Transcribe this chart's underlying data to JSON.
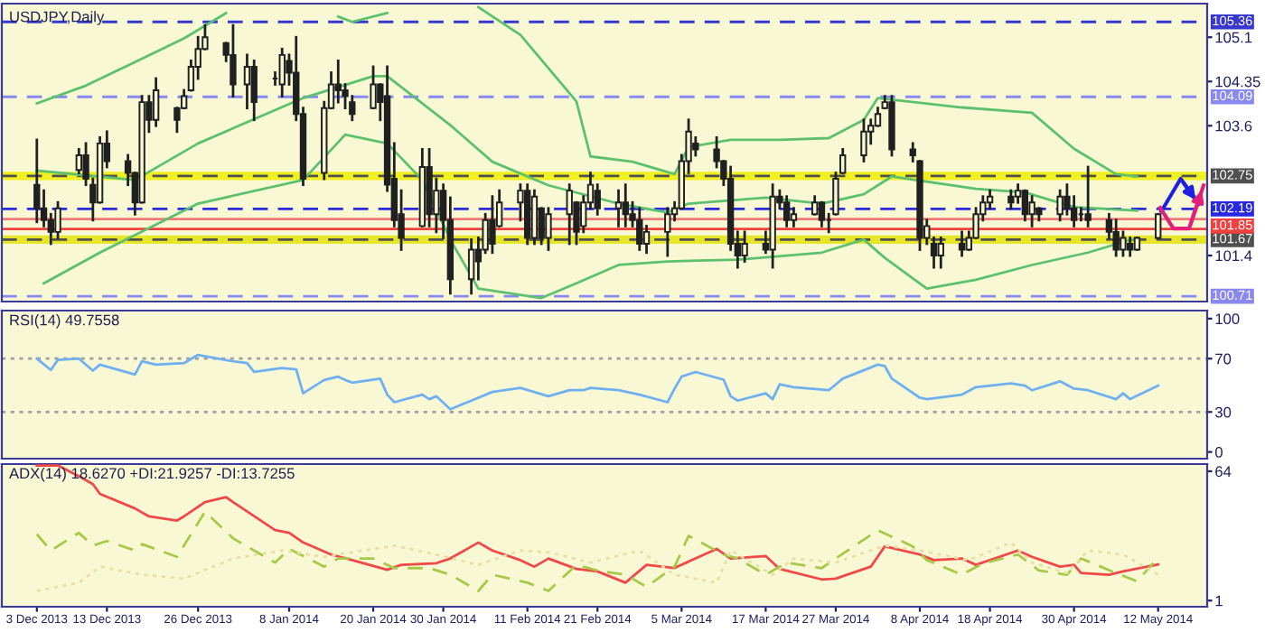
{
  "chart_data": [
    {
      "type": "candlestick",
      "title": "USDJPY,Daily",
      "color": "#202020",
      "x": [
        "2013-12-03",
        "2013-12-04",
        "2013-12-05",
        "2013-12-06",
        "2013-12-09",
        "2013-12-10",
        "2013-12-11",
        "2013-12-12",
        "2013-12-13",
        "2013-12-16",
        "2013-12-17",
        "2013-12-18",
        "2013-12-19",
        "2013-12-20",
        "2013-12-23",
        "2013-12-24",
        "2013-12-25",
        "2013-12-26",
        "2013-12-27",
        "2013-12-30",
        "2013-12-31",
        "2014-01-02",
        "2014-01-03",
        "2014-01-06",
        "2014-01-07",
        "2014-01-08",
        "2014-01-09",
        "2014-01-10",
        "2014-01-13",
        "2014-01-14",
        "2014-01-15",
        "2014-01-16",
        "2014-01-17",
        "2014-01-20",
        "2014-01-21",
        "2014-01-22",
        "2014-01-23",
        "2014-01-24",
        "2014-01-27",
        "2014-01-28",
        "2014-01-29",
        "2014-01-30",
        "2014-01-31",
        "2014-02-03",
        "2014-02-04",
        "2014-02-05",
        "2014-02-06",
        "2014-02-07",
        "2014-02-10",
        "2014-02-11",
        "2014-02-12",
        "2014-02-13",
        "2014-02-14",
        "2014-02-17",
        "2014-02-18",
        "2014-02-19",
        "2014-02-20",
        "2014-02-21",
        "2014-02-24",
        "2014-02-25",
        "2014-02-26",
        "2014-02-27",
        "2014-02-28",
        "2014-03-03",
        "2014-03-04",
        "2014-03-05",
        "2014-03-06",
        "2014-03-07",
        "2014-03-10",
        "2014-03-11",
        "2014-03-12",
        "2014-03-13",
        "2014-03-14",
        "2014-03-17",
        "2014-03-18",
        "2014-03-19",
        "2014-03-20",
        "2014-03-21",
        "2014-03-24",
        "2014-03-25",
        "2014-03-26",
        "2014-03-27",
        "2014-03-28",
        "2014-03-31",
        "2014-04-01",
        "2014-04-02",
        "2014-04-03",
        "2014-04-04",
        "2014-04-07",
        "2014-04-08",
        "2014-04-09",
        "2014-04-10",
        "2014-04-11",
        "2014-04-14",
        "2014-04-15",
        "2014-04-16",
        "2014-04-17",
        "2014-04-18",
        "2014-04-21",
        "2014-04-22",
        "2014-04-23",
        "2014-04-24",
        "2014-04-25",
        "2014-04-28",
        "2014-04-29",
        "2014-04-30",
        "2014-05-01",
        "2014-05-02",
        "2014-05-05",
        "2014-05-06",
        "2014-05-07",
        "2014-05-08",
        "2014-05-09",
        "2014-05-12"
      ],
      "ohlc": [
        [
          102.6,
          103.36,
          101.97,
          102.2
        ],
        [
          102.2,
          102.5,
          101.9,
          102.0
        ],
        [
          102.0,
          102.1,
          101.6,
          101.8
        ],
        [
          101.8,
          102.3,
          101.7,
          102.2
        ],
        [
          102.85,
          103.2,
          102.8,
          103.1
        ],
        [
          103.1,
          103.3,
          102.6,
          102.7
        ],
        [
          102.6,
          102.7,
          102.0,
          102.3
        ],
        [
          102.3,
          103.4,
          102.3,
          103.3
        ],
        [
          103.3,
          103.5,
          102.9,
          103.0
        ],
        [
          103.0,
          103.1,
          102.6,
          102.8
        ],
        [
          102.8,
          102.8,
          102.1,
          102.3
        ],
        [
          102.3,
          104.1,
          102.3,
          104.0
        ],
        [
          104.0,
          104.1,
          103.5,
          103.7
        ],
        [
          103.7,
          104.4,
          103.6,
          104.2
        ],
        [
          103.9,
          103.9,
          103.5,
          103.7
        ],
        [
          103.9,
          104.2,
          103.9,
          104.1
        ],
        [
          104.2,
          104.7,
          104.2,
          104.6
        ],
        [
          104.6,
          105.1,
          104.4,
          104.9
        ],
        [
          104.9,
          105.3,
          104.9,
          105.1
        ],
        [
          105.0,
          105.0,
          104.7,
          104.8
        ],
        [
          104.8,
          105.3,
          104.1,
          104.3
        ],
        [
          104.3,
          104.8,
          103.9,
          104.6
        ],
        [
          104.6,
          104.7,
          103.7,
          104.0
        ],
        [
          104.4,
          104.5,
          104.3,
          104.4
        ],
        [
          104.3,
          104.9,
          104.1,
          104.8
        ],
        [
          104.7,
          104.8,
          104.3,
          104.5
        ],
        [
          104.5,
          105.1,
          103.7,
          103.8
        ],
        [
          103.8,
          103.9,
          102.6,
          102.7
        ],
        [
          102.8,
          104.0,
          102.7,
          103.9
        ],
        [
          103.9,
          104.5,
          103.9,
          104.3
        ],
        [
          104.3,
          104.7,
          104.0,
          104.2
        ],
        [
          104.2,
          104.3,
          103.9,
          104.1
        ],
        [
          104.0,
          104.1,
          103.7,
          103.8
        ],
        [
          103.9,
          104.6,
          103.9,
          104.3
        ],
        [
          104.3,
          104.3,
          103.7,
          104.0
        ],
        [
          104.1,
          104.6,
          102.5,
          102.6
        ],
        [
          102.7,
          103.3,
          101.9,
          102.0
        ],
        [
          102.1,
          102.5,
          101.5,
          101.7
        ],
        [
          101.9,
          103.2,
          101.9,
          102.9
        ],
        [
          102.9,
          103.2,
          101.9,
          102.1
        ],
        [
          102.1,
          102.7,
          101.8,
          102.5
        ],
        [
          102.5,
          102.6,
          101.7,
          102.0
        ],
        [
          102.0,
          102.38,
          100.76,
          101.0
        ],
        [
          101.0,
          101.67,
          100.76,
          101.5
        ],
        [
          101.5,
          101.7,
          101.0,
          101.3
        ],
        [
          101.5,
          102.1,
          101.45,
          102.0
        ],
        [
          102.0,
          102.4,
          101.45,
          101.6
        ],
        [
          101.9,
          102.5,
          101.9,
          102.3
        ],
        [
          102.3,
          102.6,
          102.0,
          102.5
        ],
        [
          102.5,
          102.6,
          101.6,
          101.7
        ],
        [
          101.7,
          102.5,
          101.6,
          102.4
        ],
        [
          102.2,
          102.2,
          101.6,
          101.7
        ],
        [
          101.7,
          102.2,
          101.5,
          102.1
        ],
        [
          102.1,
          102.6,
          101.6,
          102.5
        ],
        [
          102.3,
          102.3,
          101.6,
          101.8
        ],
        [
          101.9,
          102.4,
          101.8,
          102.3
        ],
        [
          102.3,
          102.8,
          102.2,
          102.6
        ],
        [
          102.5,
          102.6,
          102.1,
          102.2
        ],
        [
          102.2,
          102.5,
          101.9,
          102.3
        ],
        [
          102.3,
          102.6,
          101.9,
          102.1
        ],
        [
          102.1,
          102.3,
          101.9,
          102.0
        ],
        [
          102.0,
          102.2,
          101.5,
          101.6
        ],
        [
          101.6,
          101.9,
          101.45,
          101.8
        ],
        [
          101.8,
          102.2,
          101.4,
          102.1
        ],
        [
          102.1,
          102.3,
          102.0,
          102.2
        ],
        [
          102.2,
          103.1,
          102.2,
          103.0
        ],
        [
          103.0,
          103.7,
          102.8,
          103.5
        ],
        [
          103.3,
          103.4,
          103.1,
          103.2
        ],
        [
          103.2,
          103.4,
          102.9,
          103.0
        ],
        [
          103.0,
          103.0,
          102.6,
          102.7
        ],
        [
          102.7,
          102.9,
          101.5,
          101.6
        ],
        [
          101.6,
          101.8,
          101.2,
          101.4
        ],
        [
          101.4,
          101.8,
          101.3,
          101.6
        ],
        [
          101.6,
          101.8,
          101.45,
          101.5
        ],
        [
          101.5,
          102.6,
          101.2,
          102.4
        ],
        [
          102.4,
          102.5,
          102.2,
          102.3
        ],
        [
          102.3,
          102.4,
          101.9,
          102.0
        ],
        [
          102.0,
          102.2,
          101.9,
          102.1
        ],
        [
          102.1,
          102.4,
          102.1,
          102.3
        ],
        [
          102.3,
          102.3,
          101.9,
          102.0
        ],
        [
          102.0,
          102.1,
          101.8,
          102.0
        ],
        [
          102.1,
          102.8,
          102.1,
          102.7
        ],
        [
          102.8,
          103.2,
          102.8,
          103.1
        ],
        [
          103.1,
          103.7,
          103.0,
          103.5
        ],
        [
          103.5,
          103.7,
          103.3,
          103.6
        ],
        [
          103.6,
          103.9,
          103.6,
          103.8
        ],
        [
          103.9,
          104.1,
          103.9,
          104.0
        ],
        [
          104.0,
          104.1,
          103.1,
          103.2
        ],
        [
          103.2,
          103.3,
          103.0,
          103.1
        ],
        [
          103.0,
          103.0,
          101.5,
          101.7
        ],
        [
          101.7,
          102.0,
          101.6,
          101.9
        ],
        [
          101.6,
          101.7,
          101.2,
          101.4
        ],
        [
          101.4,
          101.7,
          101.2,
          101.6
        ],
        [
          101.6,
          101.8,
          101.4,
          101.5
        ],
        [
          101.5,
          101.8,
          101.5,
          101.7
        ],
        [
          101.7,
          102.2,
          101.7,
          102.1
        ],
        [
          102.1,
          102.4,
          102.0,
          102.3
        ],
        [
          102.3,
          102.5,
          102.2,
          102.4
        ],
        [
          102.4,
          102.5,
          102.2,
          102.3
        ],
        [
          102.4,
          102.6,
          102.3,
          102.5
        ],
        [
          102.5,
          102.5,
          102.0,
          102.1
        ],
        [
          102.1,
          102.4,
          101.9,
          102.3
        ],
        [
          102.2,
          102.2,
          102.0,
          102.1
        ],
        [
          102.1,
          102.5,
          102.0,
          102.4
        ],
        [
          102.4,
          102.6,
          102.1,
          102.2
        ],
        [
          102.2,
          102.4,
          101.9,
          102.0
        ],
        [
          102.1,
          102.2,
          102.0,
          102.1
        ],
        [
          102.1,
          102.9,
          101.9,
          102.0
        ],
        [
          102.0,
          102.1,
          101.7,
          101.8
        ],
        [
          101.8,
          102.0,
          101.4,
          101.5
        ],
        [
          101.5,
          101.8,
          101.4,
          101.7
        ],
        [
          101.6,
          101.7,
          101.4,
          101.5
        ],
        [
          101.5,
          101.7,
          101.5,
          101.7
        ],
        [
          101.7,
          102.1,
          101.7,
          102.1
        ]
      ],
      "series": [
        {
          "type": "line",
          "color": "#5cc070",
          "x": [
            "2013-12-03",
            "2013-12-10",
            "2013-12-17",
            "2013-12-24",
            "2013-12-30",
            "2014-01-08",
            "2014-01-15",
            "2014-01-17",
            "2014-01-22",
            "2014-01-29",
            "2014-02-04",
            "2014-02-10",
            "2014-02-18",
            "2014-02-20",
            "2014-02-26",
            "2014-03-04",
            "2014-03-06",
            "2014-03-12",
            "2014-03-19",
            "2014-03-26",
            "2014-03-31",
            "2014-04-02",
            "2014-04-14",
            "2014-04-24",
            "2014-04-30",
            "2014-05-06",
            "2014-05-09"
          ],
          "values": [
            103.98,
            104.28,
            104.68,
            105.08,
            105.51,
            null,
            105.45,
            105.36,
            105.51,
            null,
            105.61,
            105.14,
            104.01,
            103.08,
            102.99,
            102.78,
            103.24,
            103.36,
            103.36,
            103.39,
            103.7,
            104.07,
            103.91,
            103.82,
            103.21,
            102.78,
            102.74
          ]
        },
        {
          "type": "line",
          "color": "#5cc070",
          "x": [
            "2013-12-03",
            "2013-12-17",
            "2013-12-26",
            "2014-01-10",
            "2014-01-20",
            "2014-01-22",
            "2014-01-31",
            "2014-02-06",
            "2014-02-14",
            "2014-02-24",
            "2014-03-03",
            "2014-03-06",
            "2014-03-17",
            "2014-03-25",
            "2014-03-31",
            "2014-04-04",
            "2014-04-16",
            "2014-04-23",
            "2014-04-30",
            "2014-05-09"
          ],
          "values": [
            102.84,
            102.68,
            103.3,
            104.07,
            104.44,
            104.44,
            103.61,
            102.99,
            102.59,
            102.28,
            102.13,
            102.28,
            102.38,
            102.28,
            102.44,
            102.74,
            102.53,
            102.47,
            102.22,
            102.16
          ]
        },
        {
          "type": "line",
          "color": "#5cc070",
          "x": [
            "2013-12-04",
            "2013-12-12",
            "2013-12-26",
            "2014-01-10",
            "2014-01-16",
            "2014-01-22",
            "2014-01-27",
            "2014-01-31",
            "2014-02-04",
            "2014-02-13",
            "2014-02-18",
            "2014-02-24",
            "2014-03-03",
            "2014-03-13",
            "2014-03-25",
            "2014-03-31",
            "2014-04-03",
            "2014-04-09",
            "2014-04-16",
            "2014-04-24",
            "2014-05-02",
            "2014-05-09"
          ],
          "values": [
            100.93,
            101.45,
            102.28,
            102.68,
            103.45,
            103.3,
            102.68,
            101.67,
            100.84,
            100.68,
            100.93,
            101.24,
            101.3,
            101.33,
            101.45,
            101.67,
            101.36,
            100.84,
            100.99,
            101.24,
            101.45,
            101.7
          ]
        }
      ],
      "bands": [
        {
          "axis": "y",
          "from": 102.68,
          "to": 102.82,
          "color": "#f0f020"
        },
        {
          "axis": "y",
          "from": 101.6,
          "to": 101.74,
          "color": "#e6e628"
        }
      ],
      "ref_lines": [
        {
          "axis": "y",
          "value": 105.36,
          "label": "105.36",
          "color": "#3838d0",
          "line_style": "dashed"
        },
        {
          "axis": "y",
          "value": 104.09,
          "label": "104.09",
          "color": "#8888f0",
          "line_style": "dashed"
        },
        {
          "axis": "y",
          "value": 102.75,
          "label": "102.75",
          "color": "#505050",
          "line_style": "dashed"
        },
        {
          "axis": "y",
          "value": 102.19,
          "label": "102.19",
          "color": "#2828e0",
          "line_style": "dashed"
        },
        {
          "axis": "y",
          "value": 102.02,
          "color": "#f07878",
          "line_style": "solid"
        },
        {
          "axis": "y",
          "value": 101.85,
          "label": "101.85",
          "color": "#f04040",
          "line_style": "solid"
        },
        {
          "axis": "y",
          "value": 101.67,
          "label": "101.67",
          "color": "#505050",
          "line_style": "dashed"
        },
        {
          "axis": "y",
          "value": 100.71,
          "label": "100.71",
          "color": "#8888f0",
          "line_style": "dashed"
        }
      ],
      "xlim": [
        "2013-11-28",
        "2014-05-19"
      ],
      "ylim": [
        100.62,
        105.67
      ],
      "yticks": [
        105.1,
        104.35,
        103.6,
        101.4
      ],
      "tick_labels": "y"
    },
    {
      "type": "line",
      "title": "RSI(14) 49.7558",
      "series": [
        {
          "color": "#70b0f0",
          "x": [
            "2013-12-03",
            "2013-12-05",
            "2013-12-06",
            "2013-12-09",
            "2013-12-11",
            "2013-12-12",
            "2013-12-17",
            "2013-12-18",
            "2013-12-20",
            "2013-12-24",
            "2013-12-26",
            "2013-12-31",
            "2014-01-02",
            "2014-01-03",
            "2014-01-07",
            "2014-01-09",
            "2014-01-10",
            "2014-01-13",
            "2014-01-15",
            "2014-01-16",
            "2014-01-17",
            "2014-01-21",
            "2014-01-22",
            "2014-01-23",
            "2014-01-27",
            "2014-01-28",
            "2014-01-29",
            "2014-01-31",
            "2014-02-03",
            "2014-02-06",
            "2014-02-10",
            "2014-02-14",
            "2014-02-17",
            "2014-02-19",
            "2014-02-20",
            "2014-02-24",
            "2014-02-27",
            "2014-03-03",
            "2014-03-04",
            "2014-03-05",
            "2014-03-07",
            "2014-03-11",
            "2014-03-12",
            "2014-03-13",
            "2014-03-17",
            "2014-03-18",
            "2014-03-19",
            "2014-03-21",
            "2014-03-26",
            "2014-03-28",
            "2014-04-02",
            "2014-04-03",
            "2014-04-04",
            "2014-04-08",
            "2014-04-09",
            "2014-04-14",
            "2014-04-16",
            "2014-04-21",
            "2014-04-23",
            "2014-04-24",
            "2014-04-28",
            "2014-04-30",
            "2014-05-02",
            "2014-05-06",
            "2014-05-07",
            "2014-05-08",
            "2014-05-12"
          ],
          "values": [
            70,
            61.5,
            69,
            70,
            61,
            65.5,
            58,
            68,
            65.5,
            66.6,
            72.8,
            68,
            66.6,
            60,
            63,
            62,
            44,
            54,
            56.5,
            54,
            52,
            55,
            43,
            37.3,
            43,
            39.6,
            41.8,
            32,
            38.5,
            45,
            48,
            41.8,
            46.3,
            46.3,
            48,
            46.3,
            43,
            37.3,
            47.5,
            56.5,
            60,
            54.2,
            41.8,
            38.5,
            44,
            39.6,
            50.8,
            48.6,
            46.3,
            55,
            65.5,
            64.4,
            55,
            40.7,
            39.6,
            43,
            48.6,
            51.4,
            49.7,
            46.3,
            53,
            47.5,
            46.3,
            39.6,
            44,
            39.6,
            49.8
          ]
        }
      ],
      "ref_lines": [
        {
          "axis": "y",
          "value": 70,
          "color": "#a0a0a0",
          "line_style": "dotted"
        },
        {
          "axis": "y",
          "value": 30,
          "color": "#a0a0a0",
          "line_style": "dotted"
        }
      ],
      "xlim": [
        "2013-11-28",
        "2014-05-19"
      ],
      "ylim": [
        -5,
        106
      ],
      "yticks": [
        0,
        30,
        70,
        100
      ],
      "tick_labels": "y"
    },
    {
      "type": "line",
      "title": "ADX(14) 18.6270 +DI:21.9257 -DI:13.7255",
      "series": [
        {
          "color": "#f04848",
          "line_style": "solid",
          "x": [
            "2013-12-03",
            "2013-12-06",
            "2013-12-09",
            "2013-12-11",
            "2013-12-12",
            "2013-12-17",
            "2013-12-19",
            "2013-12-23",
            "2013-12-24",
            "2013-12-27",
            "2013-12-30",
            "2013-12-31",
            "2014-01-06",
            "2014-01-08",
            "2014-01-10",
            "2014-01-14",
            "2014-01-17",
            "2014-01-22",
            "2014-01-24",
            "2014-01-29",
            "2014-01-31",
            "2014-02-04",
            "2014-02-06",
            "2014-02-10",
            "2014-02-12",
            "2014-02-14",
            "2014-02-18",
            "2014-02-21",
            "2014-02-25",
            "2014-02-28",
            "2014-03-04",
            "2014-03-10",
            "2014-03-12",
            "2014-03-17",
            "2014-03-19",
            "2014-03-25",
            "2014-03-27",
            "2014-04-01",
            "2014-04-03",
            "2014-04-08",
            "2014-04-10",
            "2014-04-14",
            "2014-04-16",
            "2014-04-22",
            "2014-04-24",
            "2014-04-28",
            "2014-04-30",
            "2014-05-01",
            "2014-05-05",
            "2014-05-07",
            "2014-05-12"
          ],
          "values": [
            66.8,
            66.8,
            61.6,
            57.7,
            53,
            45.9,
            42,
            40,
            42,
            49,
            51.4,
            49,
            35.3,
            34,
            29.3,
            23.4,
            20.7,
            16,
            18.4,
            19.2,
            21.5,
            29.3,
            25.4,
            20.7,
            17.5,
            21.5,
            16.4,
            15.2,
            9.7,
            18.4,
            16.9,
            26.2,
            21.5,
            22.7,
            16.4,
            11.3,
            11.7,
            17.5,
            27.4,
            23.4,
            20.7,
            21.5,
            18.4,
            25.4,
            22.3,
            17.5,
            18.4,
            14.4,
            13.6,
            15.2,
            18.6
          ]
        },
        {
          "color": "#a8c848",
          "line_style": "dashed",
          "x": [
            "2013-12-03",
            "2013-12-05",
            "2013-12-09",
            "2013-12-11",
            "2013-12-13",
            "2013-12-17",
            "2013-12-18",
            "2013-12-23",
            "2013-12-27",
            "2013-12-31",
            "2014-01-06",
            "2014-01-08",
            "2014-01-13",
            "2014-01-15",
            "2014-01-20",
            "2014-01-23",
            "2014-01-28",
            "2014-01-31",
            "2014-02-04",
            "2014-02-06",
            "2014-02-11",
            "2014-02-14",
            "2014-02-18",
            "2014-02-21",
            "2014-02-25",
            "2014-02-28",
            "2014-03-04",
            "2014-03-06",
            "2014-03-11",
            "2014-03-13",
            "2014-03-17",
            "2014-03-20",
            "2014-03-25",
            "2014-03-27",
            "2014-04-02",
            "2014-04-07",
            "2014-04-09",
            "2014-04-14",
            "2014-04-17",
            "2014-04-22",
            "2014-04-25",
            "2014-04-29",
            "2014-05-01",
            "2014-05-06",
            "2014-05-09",
            "2014-05-12"
          ],
          "values": [
            33.3,
            25.4,
            34,
            27.8,
            30,
            25.4,
            28.5,
            22.3,
            44.3,
            31.3,
            19.5,
            26.2,
            17.5,
            21.5,
            21.5,
            16.8,
            16.8,
            13.6,
            5.7,
            13.6,
            9.7,
            5.7,
            18.4,
            15.6,
            13.6,
            7.7,
            17.5,
            32.5,
            23.4,
            21.5,
            13.6,
            19.5,
            16.8,
            21.5,
            35.3,
            27.4,
            20.7,
            13.6,
            19.1,
            23.4,
            15.6,
            13.6,
            21.5,
            14.4,
            10.4,
            21.9
          ]
        },
        {
          "color": "#e6dfa6",
          "line_style": "dotted",
          "x": [
            "2013-12-03",
            "2013-12-09",
            "2013-12-12",
            "2013-12-18",
            "2013-12-24",
            "2013-12-31",
            "2014-01-07",
            "2014-01-13",
            "2014-01-17",
            "2014-01-23",
            "2014-01-29",
            "2014-02-04",
            "2014-02-10",
            "2014-02-14",
            "2014-02-20",
            "2014-02-27",
            "2014-03-04",
            "2014-03-10",
            "2014-03-12",
            "2014-03-18",
            "2014-03-21",
            "2014-03-27",
            "2014-04-03",
            "2014-04-08",
            "2014-04-15",
            "2014-04-21",
            "2014-04-24",
            "2014-04-29",
            "2014-05-02",
            "2014-05-07",
            "2014-05-12"
          ],
          "values": [
            5.7,
            9.7,
            17.5,
            13.6,
            11.7,
            21.5,
            25.4,
            22.3,
            24.6,
            27.8,
            23.4,
            18.4,
            25.4,
            24.6,
            19.5,
            25.4,
            13.6,
            9.7,
            25.4,
            13.6,
            21.5,
            19.5,
            27.8,
            25.4,
            20.7,
            29.3,
            19.5,
            14.4,
            25.4,
            23.4,
            13.7
          ]
        }
      ],
      "xlim": [
        "2013-11-28",
        "2014-05-19"
      ],
      "ylim": [
        -2,
        67.5
      ],
      "yticks": [
        1,
        64
      ],
      "xticks": [
        {
          "value": "2013-12-03",
          "label": "3 Dec 2013"
        },
        {
          "value": "2013-12-13",
          "label": "13 Dec 2013"
        },
        {
          "value": "2013-12-26",
          "label": "26 Dec 2013"
        },
        {
          "value": "2014-01-08",
          "label": "8 Jan 2014"
        },
        {
          "value": "2014-01-20",
          "label": "20 Jan 2014"
        },
        {
          "value": "2014-01-30",
          "label": "30 Jan 2014"
        },
        {
          "value": "2014-02-11",
          "label": "11 Feb 2014"
        },
        {
          "value": "2014-02-21",
          "label": "21 Feb 2014"
        },
        {
          "value": "2014-03-05",
          "label": "5 Mar 2014"
        },
        {
          "value": "2014-03-17",
          "label": "17 Mar 2014"
        },
        {
          "value": "2014-03-27",
          "label": "27 Mar 2014"
        },
        {
          "value": "2014-04-08",
          "label": "8 Apr 2014"
        },
        {
          "value": "2014-04-18",
          "label": "18 Apr 2014"
        },
        {
          "value": "2014-04-30",
          "label": "30 Apr 2014"
        },
        {
          "value": "2014-05-12",
          "label": "12 May 2014"
        }
      ]
    }
  ]
}
